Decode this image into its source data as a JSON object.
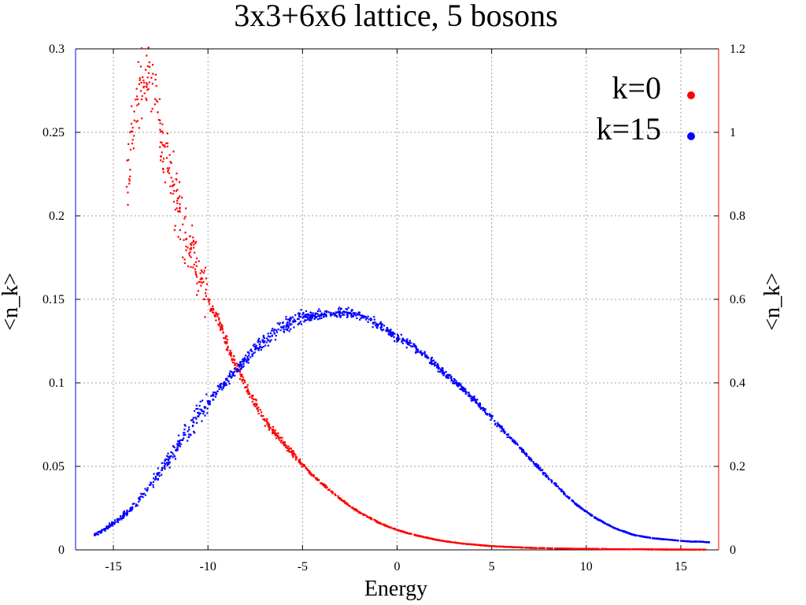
{
  "chart_data": {
    "type": "scatter",
    "title": "3x3+6x6 lattice, 5 bosons",
    "xlabel": "Energy",
    "ylabel_left": "<n_k>",
    "ylabel_right": "<n_k>",
    "xlim": [
      -17,
      17
    ],
    "ylim_left": [
      0,
      0.3
    ],
    "ylim_right": [
      0,
      1.2
    ],
    "xticks": [
      -15,
      -10,
      -5,
      0,
      5,
      10,
      15
    ],
    "xtick_labels": [
      "-15",
      "-10",
      "-5",
      "0",
      "5",
      "10",
      "15"
    ],
    "yticks_left": [
      0,
      0.05,
      0.1,
      0.15,
      0.2,
      0.25,
      0.3
    ],
    "ytick_labels_left": [
      "0",
      "0.05",
      "0.1",
      "0.15",
      "0.2",
      "0.25",
      "0.3"
    ],
    "yticks_right": [
      0,
      0.2,
      0.4,
      0.6,
      0.8,
      1,
      1.2
    ],
    "ytick_labels_right": [
      "0",
      "0.2",
      "0.4",
      "0.6",
      "0.8",
      "1",
      "1.2"
    ],
    "grid": true,
    "legend_position": "top-right",
    "colors": {
      "left_axis": "#0000ff",
      "right_axis": "#ff0000",
      "frame": "#000000"
    },
    "series": [
      {
        "name": "k=0",
        "axis": "right",
        "color": "#ff0000",
        "x": [
          -14.3,
          -13.9,
          -13.6,
          -13.3,
          -13.1,
          -12.8,
          -12.6,
          -12.4,
          -12.1,
          -11.8,
          -11.5,
          -11.2,
          -10.9,
          -10.6,
          -10.3,
          -10.0,
          -9.6,
          -9.2,
          -8.8,
          -8.4,
          -8.0,
          -7.5,
          -7.0,
          -6.5,
          -6.0,
          -5.5,
          -5.0,
          -4.5,
          -4.0,
          -3.5,
          -3.0,
          -2.5,
          -2.0,
          -1.5,
          -1.0,
          -0.5,
          0.0,
          0.5,
          1.0,
          1.5,
          2.0,
          2.5,
          3.0,
          3.5,
          4.0,
          4.5,
          5.0,
          5.5,
          6.0,
          6.5,
          7.0,
          7.5,
          8.0,
          8.5,
          9.0,
          9.5,
          10.0,
          10.5,
          11.0,
          11.5,
          12.0,
          12.5,
          13.0,
          13.5,
          14.0,
          14.5,
          15.0,
          15.5,
          16.0,
          16.3
        ],
        "values": [
          0.87,
          1.05,
          1.13,
          1.15,
          1.12,
          1.08,
          1.03,
          0.97,
          0.91,
          0.86,
          0.81,
          0.76,
          0.72,
          0.68,
          0.64,
          0.6,
          0.56,
          0.52,
          0.47,
          0.43,
          0.39,
          0.35,
          0.31,
          0.28,
          0.255,
          0.23,
          0.205,
          0.18,
          0.16,
          0.14,
          0.122,
          0.105,
          0.09,
          0.078,
          0.066,
          0.056,
          0.048,
          0.041,
          0.035,
          0.03,
          0.025,
          0.021,
          0.018,
          0.015,
          0.013,
          0.011,
          0.009,
          0.008,
          0.007,
          0.006,
          0.005,
          0.0045,
          0.004,
          0.0035,
          0.003,
          0.0028,
          0.0025,
          0.0022,
          0.002,
          0.0018,
          0.0016,
          0.0015,
          0.0013,
          0.0012,
          0.0011,
          0.001,
          0.001,
          0.0009,
          0.0008,
          0.0008
        ]
      },
      {
        "name": "k=15",
        "axis": "left",
        "color": "#0000ff",
        "x": [
          -16.0,
          -15.5,
          -15.0,
          -14.5,
          -14.0,
          -13.6,
          -13.2,
          -12.8,
          -12.4,
          -12.0,
          -11.5,
          -11.0,
          -10.5,
          -10.0,
          -9.5,
          -9.0,
          -8.5,
          -8.0,
          -7.5,
          -7.0,
          -6.5,
          -6.0,
          -5.5,
          -5.0,
          -4.5,
          -4.0,
          -3.5,
          -3.0,
          -2.5,
          -2.0,
          -1.5,
          -1.0,
          -0.5,
          0.0,
          0.5,
          1.0,
          1.5,
          2.0,
          2.5,
          3.0,
          3.5,
          4.0,
          4.5,
          5.0,
          5.5,
          6.0,
          6.5,
          7.0,
          7.5,
          8.0,
          8.5,
          9.0,
          9.5,
          10.0,
          10.5,
          11.0,
          11.5,
          12.0,
          12.5,
          13.0,
          13.5,
          14.0,
          14.5,
          15.0,
          15.5,
          16.0,
          16.5
        ],
        "values": [
          0.009,
          0.012,
          0.016,
          0.02,
          0.025,
          0.03,
          0.036,
          0.042,
          0.049,
          0.056,
          0.064,
          0.072,
          0.08,
          0.088,
          0.095,
          0.102,
          0.108,
          0.114,
          0.12,
          0.125,
          0.13,
          0.134,
          0.137,
          0.139,
          0.14,
          0.141,
          0.142,
          0.142,
          0.142,
          0.141,
          0.138,
          0.135,
          0.131,
          0.127,
          0.124,
          0.121,
          0.116,
          0.111,
          0.106,
          0.101,
          0.096,
          0.091,
          0.085,
          0.079,
          0.073,
          0.067,
          0.061,
          0.055,
          0.049,
          0.043,
          0.038,
          0.032,
          0.027,
          0.023,
          0.019,
          0.016,
          0.013,
          0.011,
          0.009,
          0.008,
          0.007,
          0.0065,
          0.006,
          0.0055,
          0.005,
          0.005,
          0.0045
        ]
      }
    ]
  }
}
